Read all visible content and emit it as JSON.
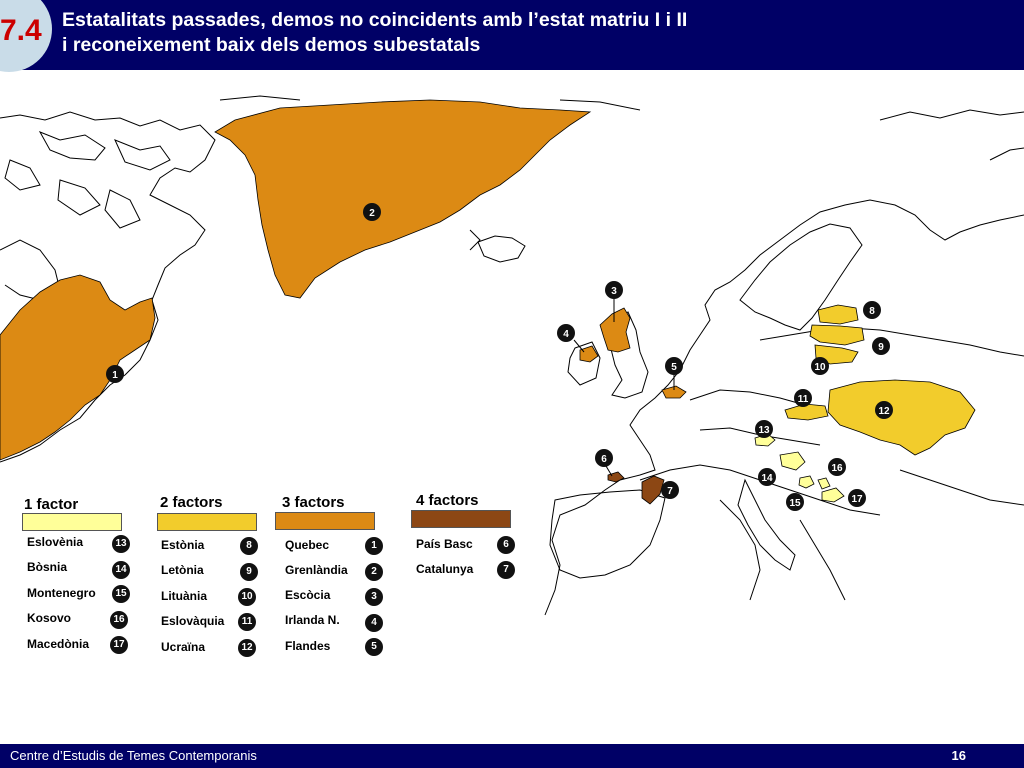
{
  "header": {
    "section_number": "7.4",
    "title_line1": "Estatalitats passades, demos no coincidents amb l’estat matriu I i II",
    "title_line2": "i reconeixement baix dels demos subestatals"
  },
  "colors": {
    "header_bg": "#000066",
    "factor_1": "#ffff99",
    "factor_2": "#f2cc2c",
    "factor_3": "#dc8a14",
    "factor_4": "#8c4714"
  },
  "map": {
    "pins": [
      {
        "n": "1",
        "region": "Quebec"
      },
      {
        "n": "2",
        "region": "Grenlàndia"
      },
      {
        "n": "3",
        "region": "Escòcia"
      },
      {
        "n": "4",
        "region": "Irlanda N."
      },
      {
        "n": "5",
        "region": "Flandes"
      },
      {
        "n": "6",
        "region": "País Basc"
      },
      {
        "n": "7",
        "region": "Catalunya"
      },
      {
        "n": "8",
        "region": "Estònia"
      },
      {
        "n": "9",
        "region": "Letònia"
      },
      {
        "n": "10",
        "region": "Lituània"
      },
      {
        "n": "11",
        "region": "Eslovàquia"
      },
      {
        "n": "12",
        "region": "Ucraïna"
      },
      {
        "n": "13",
        "region": "Eslovènia"
      },
      {
        "n": "14",
        "region": "Bòsnia"
      },
      {
        "n": "15",
        "region": "Montenegro"
      },
      {
        "n": "16",
        "region": "Kosovo"
      },
      {
        "n": "17",
        "region": "Macedònia"
      }
    ]
  },
  "legend": {
    "groups": [
      {
        "label": "1 factor",
        "color": "#ffff99",
        "items": [
          {
            "name": "Eslovènia",
            "n": "13"
          },
          {
            "name": "Bòsnia",
            "n": "14"
          },
          {
            "name": "Montenegro",
            "n": "15"
          },
          {
            "name": "Kosovo",
            "n": "16"
          },
          {
            "name": "Macedònia",
            "n": "17"
          }
        ]
      },
      {
        "label": "2 factors",
        "color": "#f2cc2c",
        "items": [
          {
            "name": "Estònia",
            "n": "8"
          },
          {
            "name": "Letònia",
            "n": "9"
          },
          {
            "name": "Lituània",
            "n": "10"
          },
          {
            "name": "Eslovàquia",
            "n": "11"
          },
          {
            "name": "Ucraïna",
            "n": "12"
          }
        ]
      },
      {
        "label": "3 factors",
        "color": "#dc8a14",
        "items": [
          {
            "name": "Quebec",
            "n": "1"
          },
          {
            "name": "Grenlàndia",
            "n": "2"
          },
          {
            "name": "Escòcia",
            "n": "3"
          },
          {
            "name": "Irlanda N.",
            "n": "4"
          },
          {
            "name": "Flandes",
            "n": "5"
          }
        ]
      },
      {
        "label": "4 factors",
        "color": "#8c4714",
        "items": [
          {
            "name": "País Basc",
            "n": "6"
          },
          {
            "name": "Catalunya",
            "n": "7"
          }
        ]
      }
    ]
  },
  "footer": {
    "org": "Centre d’Estudis de Temes Contemporanis",
    "page": "16"
  }
}
